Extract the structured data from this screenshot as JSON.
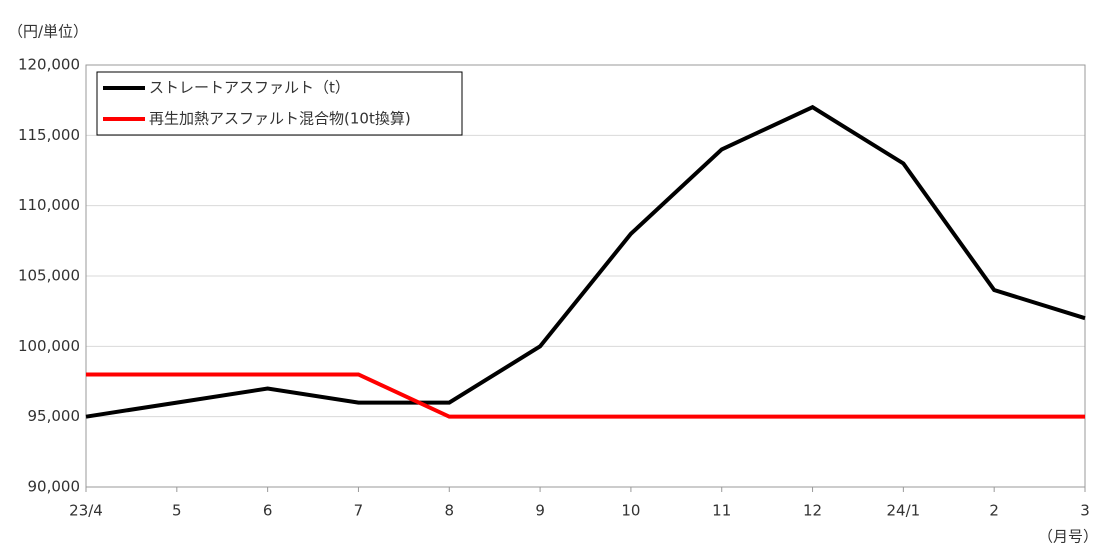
{
  "chart_data": {
    "type": "line",
    "y_label": "（円/単位）",
    "x_label": "（月号）",
    "categories": [
      "23/4",
      "5",
      "6",
      "7",
      "8",
      "9",
      "10",
      "11",
      "12",
      "24/1",
      "2",
      "3"
    ],
    "series": [
      {
        "name": "ストレートアスファルト（t）",
        "color": "#000000",
        "values": [
          95000,
          96000,
          97000,
          96000,
          96000,
          100000,
          108000,
          114000,
          117000,
          113000,
          104000,
          102000
        ]
      },
      {
        "name": "再生加熱アスファルト混合物(10t換算)",
        "color": "#ff0000",
        "values": [
          98000,
          98000,
          98000,
          98000,
          95000,
          95000,
          95000,
          95000,
          95000,
          95000,
          95000,
          95000
        ]
      }
    ],
    "ylim": [
      90000,
      120000
    ],
    "yticks": [
      {
        "value": 90000,
        "label": "90,000"
      },
      {
        "value": 95000,
        "label": "95,000"
      },
      {
        "value": 100000,
        "label": "100,000"
      },
      {
        "value": 105000,
        "label": "105,000"
      },
      {
        "value": 110000,
        "label": "110,000"
      },
      {
        "value": 115000,
        "label": "115,000"
      },
      {
        "value": 120000,
        "label": "120,000"
      }
    ],
    "grid": true,
    "legend": "top-left"
  }
}
